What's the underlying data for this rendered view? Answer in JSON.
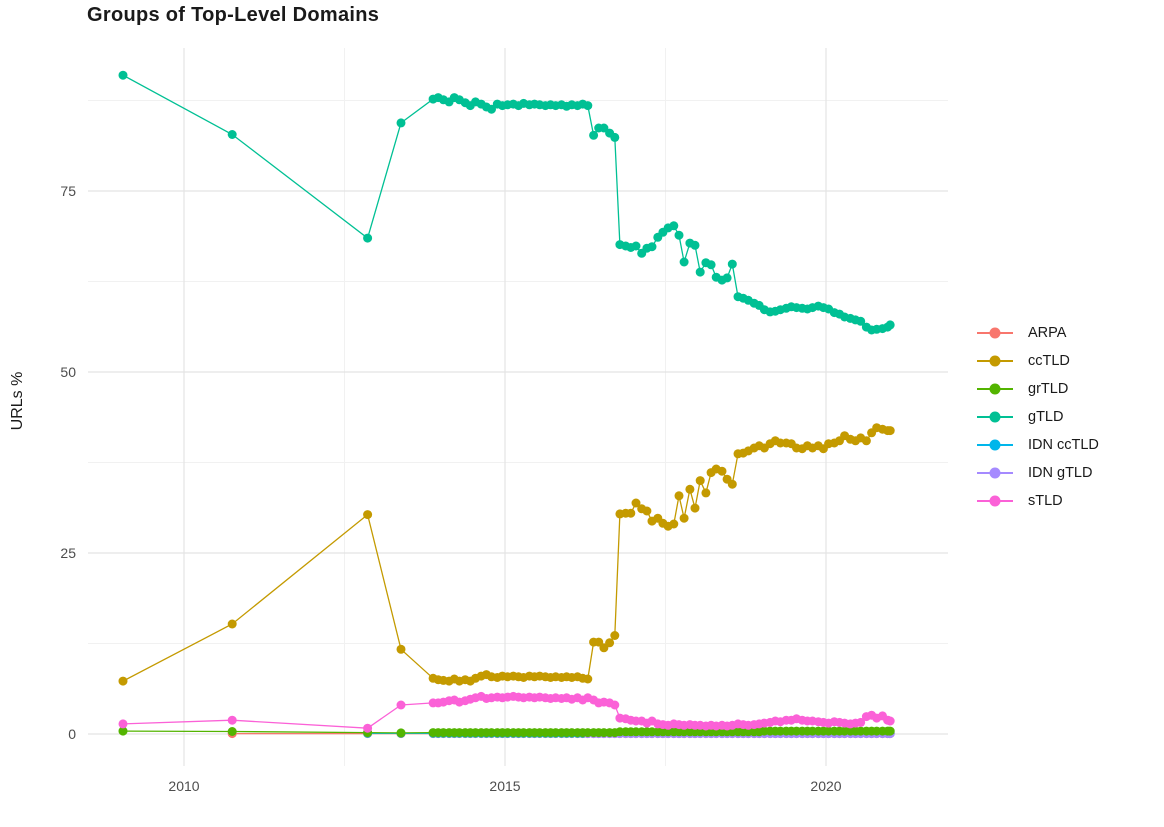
{
  "title": "Groups of Top-Level Domains",
  "ylabel": "URLs %",
  "chart_data": {
    "type": "scatter",
    "title": "Groups of Top-Level Domains",
    "xlabel": "",
    "ylabel": "URLs %",
    "x_axis": {
      "ticks": [
        2010,
        2015,
        2020
      ],
      "minor": [
        2012.5,
        2017.5
      ],
      "range": [
        2008.5,
        2021.9
      ],
      "grid": true
    },
    "y_axis": {
      "ticks": [
        0,
        25,
        50,
        75
      ],
      "minor": [
        12.5,
        37.5,
        62.5,
        87.5
      ],
      "range": [
        -4.3,
        94.6
      ],
      "grid": true
    },
    "legend": {
      "position": "right",
      "entries": [
        {
          "label": "ARPA",
          "color": "#F8766D"
        },
        {
          "label": "ccTLD",
          "color": "#C49A00"
        },
        {
          "label": "grTLD",
          "color": "#53B400"
        },
        {
          "label": "gTLD",
          "color": "#00C094"
        },
        {
          "label": "IDN ccTLD",
          "color": "#00B6EB"
        },
        {
          "label": "IDN gTLD",
          "color": "#A58AFF"
        },
        {
          "label": "sTLD",
          "color": "#FB61D7"
        }
      ]
    },
    "months": [
      2013.88,
      2013.96,
      2014.04,
      2014.13,
      2014.21,
      2014.29,
      2014.38,
      2014.46,
      2014.54,
      2014.63,
      2014.71,
      2014.79,
      2014.88,
      2014.96,
      2015.04,
      2015.13,
      2015.21,
      2015.29,
      2015.38,
      2015.46,
      2015.54,
      2015.63,
      2015.71,
      2015.79,
      2015.88,
      2015.96,
      2016.04,
      2016.13,
      2016.21,
      2016.29,
      2016.38,
      2016.46,
      2016.54,
      2016.63,
      2016.71,
      2016.79,
      2016.88,
      2016.96,
      2017.04,
      2017.13,
      2017.21,
      2017.29,
      2017.38,
      2017.46,
      2017.54,
      2017.63,
      2017.71,
      2017.79,
      2017.88,
      2017.96,
      2018.04,
      2018.13,
      2018.21,
      2018.29,
      2018.38,
      2018.46,
      2018.54,
      2018.63,
      2018.71,
      2018.79,
      2018.88,
      2018.96,
      2019.04,
      2019.13,
      2019.21,
      2019.29,
      2019.38,
      2019.46,
      2019.54,
      2019.63,
      2019.71,
      2019.79,
      2019.88,
      2019.96,
      2020.04,
      2020.13,
      2020.21,
      2020.29,
      2020.38,
      2020.46,
      2020.54,
      2020.63,
      2020.71,
      2020.79,
      2020.88,
      2020.96,
      2021.0
    ],
    "draw_order": [
      "ARPA",
      "IDN ccTLD",
      "IDN gTLD",
      "grTLD",
      "ccTLD",
      "gTLD",
      "sTLD"
    ],
    "series": [
      {
        "name": "ARPA",
        "color": "#F8766D",
        "pre": [
          [
            2010.75,
            0.05
          ],
          [
            2012.86,
            0.05
          ],
          [
            2013.38,
            0.05
          ]
        ],
        "monthly_const": 0.05,
        "monthly_start": 0
      },
      {
        "name": "ccTLD",
        "color": "#C49A00",
        "pre": [
          [
            2009.05,
            7.3
          ],
          [
            2010.75,
            15.2
          ],
          [
            2012.86,
            30.3
          ],
          [
            2013.38,
            11.7
          ]
        ],
        "monthly": [
          7.7,
          7.5,
          7.4,
          7.3,
          7.6,
          7.3,
          7.5,
          7.3,
          7.7,
          8.0,
          8.2,
          7.9,
          7.8,
          8.0,
          7.9,
          8.0,
          7.9,
          7.8,
          8.0,
          7.9,
          8.0,
          7.9,
          7.8,
          7.9,
          7.8,
          7.9,
          7.8,
          7.9,
          7.7,
          7.6,
          12.7,
          12.7,
          11.9,
          12.6,
          13.6,
          30.4,
          30.5,
          30.5,
          31.9,
          31.1,
          30.8,
          29.4,
          29.8,
          29.1,
          28.7,
          29.0,
          32.9,
          29.8,
          33.8,
          31.2,
          35.0,
          33.3,
          36.1,
          36.6,
          36.3,
          35.2,
          34.5,
          38.7,
          38.8,
          39.1,
          39.5,
          39.8,
          39.5,
          40.1,
          40.5,
          40.2,
          40.2,
          40.1,
          39.5,
          39.4,
          39.8,
          39.5,
          39.8,
          39.4,
          40.1,
          40.2,
          40.5,
          41.2,
          40.7,
          40.5,
          40.9,
          40.5,
          41.6,
          42.3,
          42.1,
          41.9,
          41.9
        ]
      },
      {
        "name": "grTLD",
        "color": "#53B400",
        "pre": [
          [
            2009.05,
            0.4
          ],
          [
            2010.75,
            0.35
          ],
          [
            2012.86,
            0.2
          ],
          [
            2013.38,
            0.15
          ]
        ],
        "monthly": [
          0.2,
          0.2,
          0.2,
          0.2,
          0.2,
          0.2,
          0.2,
          0.2,
          0.2,
          0.2,
          0.2,
          0.2,
          0.2,
          0.2,
          0.2,
          0.2,
          0.2,
          0.2,
          0.2,
          0.2,
          0.2,
          0.2,
          0.2,
          0.2,
          0.2,
          0.2,
          0.2,
          0.2,
          0.2,
          0.2,
          0.2,
          0.2,
          0.2,
          0.2,
          0.2,
          0.3,
          0.3,
          0.3,
          0.3,
          0.3,
          0.3,
          0.3,
          0.3,
          0.3,
          0.3,
          0.3,
          0.3,
          0.3,
          0.3,
          0.3,
          0.3,
          0.3,
          0.3,
          0.3,
          0.3,
          0.3,
          0.3,
          0.3,
          0.3,
          0.3,
          0.3,
          0.3,
          0.4,
          0.4,
          0.4,
          0.4,
          0.4,
          0.4,
          0.4,
          0.4,
          0.4,
          0.4,
          0.4,
          0.4,
          0.4,
          0.4,
          0.4,
          0.4,
          0.4,
          0.4,
          0.4,
          0.4,
          0.4,
          0.4,
          0.4,
          0.4,
          0.4
        ]
      },
      {
        "name": "gTLD",
        "color": "#00C094",
        "pre": [
          [
            2009.05,
            91.0
          ],
          [
            2010.75,
            82.8
          ],
          [
            2012.86,
            68.5
          ],
          [
            2013.38,
            84.4
          ]
        ],
        "monthly": [
          87.7,
          87.9,
          87.6,
          87.3,
          87.9,
          87.6,
          87.2,
          86.8,
          87.3,
          87.0,
          86.6,
          86.3,
          87.0,
          86.8,
          86.9,
          87.0,
          86.8,
          87.1,
          86.9,
          87.0,
          86.9,
          86.8,
          86.9,
          86.8,
          86.9,
          86.7,
          86.9,
          86.8,
          87.0,
          86.8,
          82.7,
          83.7,
          83.7,
          83.0,
          82.4,
          67.6,
          67.4,
          67.2,
          67.4,
          66.4,
          67.1,
          67.3,
          68.6,
          69.3,
          69.9,
          70.2,
          68.9,
          65.2,
          67.8,
          67.5,
          63.8,
          65.1,
          64.8,
          63.1,
          62.7,
          63.0,
          64.9,
          60.4,
          60.2,
          59.9,
          59.5,
          59.2,
          58.6,
          58.3,
          58.4,
          58.6,
          58.8,
          59.0,
          58.9,
          58.8,
          58.7,
          58.9,
          59.1,
          58.9,
          58.7,
          58.2,
          58.0,
          57.6,
          57.4,
          57.2,
          57.0,
          56.2,
          55.8,
          55.9,
          56.0,
          56.2,
          56.5
        ]
      },
      {
        "name": "IDN ccTLD",
        "color": "#00B6EB",
        "pre": [
          [
            2012.86,
            0.1
          ],
          [
            2013.38,
            0.1
          ]
        ],
        "monthly_const": 0.1,
        "monthly_start": 0
      },
      {
        "name": "IDN gTLD",
        "color": "#A58AFF",
        "pre": [],
        "monthly_const": 0.05,
        "monthly_start": 29
      },
      {
        "name": "sTLD",
        "color": "#FB61D7",
        "pre": [
          [
            2009.05,
            1.4
          ],
          [
            2010.75,
            1.9
          ],
          [
            2012.86,
            0.8
          ],
          [
            2013.38,
            4.0
          ]
        ],
        "monthly": [
          4.3,
          4.3,
          4.4,
          4.6,
          4.7,
          4.4,
          4.6,
          4.8,
          5.0,
          5.2,
          4.9,
          5.0,
          5.1,
          5.0,
          5.1,
          5.2,
          5.1,
          5.0,
          5.1,
          5.0,
          5.1,
          5.0,
          4.9,
          5.0,
          4.9,
          5.0,
          4.8,
          5.0,
          4.7,
          5.0,
          4.7,
          4.3,
          4.4,
          4.3,
          4.0,
          2.2,
          2.1,
          1.9,
          1.8,
          1.8,
          1.5,
          1.8,
          1.4,
          1.3,
          1.2,
          1.4,
          1.3,
          1.2,
          1.3,
          1.2,
          1.2,
          1.1,
          1.2,
          1.1,
          1.2,
          1.1,
          1.2,
          1.4,
          1.3,
          1.2,
          1.3,
          1.4,
          1.5,
          1.6,
          1.8,
          1.7,
          1.9,
          1.9,
          2.1,
          1.9,
          1.8,
          1.8,
          1.7,
          1.6,
          1.5,
          1.7,
          1.6,
          1.5,
          1.4,
          1.5,
          1.6,
          2.4,
          2.6,
          2.2,
          2.5,
          1.9,
          1.8
        ]
      }
    ]
  }
}
